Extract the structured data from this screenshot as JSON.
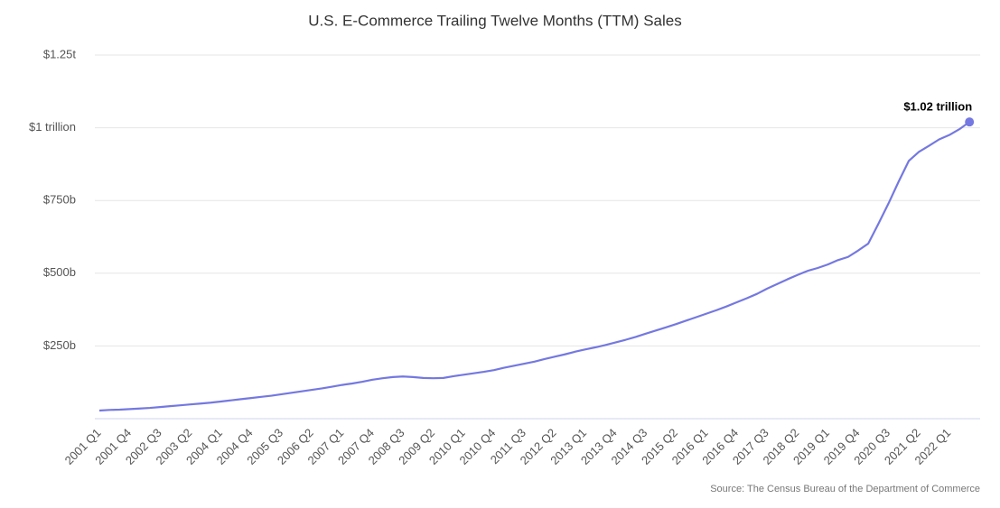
{
  "chart_data": {
    "type": "line",
    "title": "U.S. E-Commerce Trailing Twelve Months (TTM) Sales",
    "source": "Source: The Census Bureau of the Department of Commerce",
    "categories": [
      "2001 Q1",
      null,
      null,
      "2001 Q4",
      null,
      null,
      "2002 Q3",
      null,
      null,
      "2003 Q2",
      null,
      null,
      "2004 Q1",
      null,
      null,
      "2004 Q4",
      null,
      null,
      "2005 Q3",
      null,
      null,
      "2006 Q2",
      null,
      null,
      "2007 Q1",
      null,
      null,
      "2007 Q4",
      null,
      null,
      "2008 Q3",
      null,
      null,
      "2009 Q2",
      null,
      null,
      "2010 Q1",
      null,
      null,
      "2010 Q4",
      null,
      null,
      "2011 Q3",
      null,
      null,
      "2012 Q2",
      null,
      null,
      "2013 Q1",
      null,
      null,
      "2013 Q4",
      null,
      null,
      "2014 Q3",
      null,
      null,
      "2015 Q2",
      null,
      null,
      "2016 Q1",
      null,
      null,
      "2016 Q4",
      null,
      null,
      "2017 Q3",
      null,
      null,
      "2018 Q2",
      null,
      null,
      "2019 Q1",
      null,
      null,
      "2019 Q4",
      null,
      null,
      "2020 Q3",
      null,
      null,
      "2021 Q2",
      null,
      null,
      "2022 Q1",
      null,
      null
    ],
    "series": [
      {
        "name": "TTM Sales",
        "color": "#7478e0",
        "values": [
          28,
          30,
          31,
          33,
          35,
          37,
          40,
          43,
          46,
          49,
          52,
          55,
          59,
          63,
          67,
          71,
          75,
          79,
          84,
          89,
          94,
          99,
          104,
          110,
          116,
          121,
          127,
          134,
          139,
          143,
          145,
          143,
          140,
          139,
          140,
          146,
          151,
          156,
          161,
          167,
          175,
          182,
          189,
          196,
          205,
          213,
          221,
          230,
          238,
          245,
          253,
          262,
          271,
          281,
          292,
          303,
          314,
          325,
          337,
          349,
          361,
          373,
          386,
          400,
          414,
          429,
          447,
          463,
          479,
          494,
          508,
          518,
          530,
          545,
          556,
          578,
          602,
          670,
          740,
          815,
          886,
          917,
          938,
          960,
          975,
          995,
          1020
        ],
        "value_labels": {
          "86": "$1.02 trillion"
        }
      }
    ],
    "ylim": [
      0,
      1250
    ],
    "yticks": [
      {
        "value": 250,
        "label": "$250b"
      },
      {
        "value": 500,
        "label": "$500b"
      },
      {
        "value": 750,
        "label": "$750b"
      },
      {
        "value": 1000,
        "label": "$1 trillion"
      },
      {
        "value": 1250,
        "label": "$1.25t"
      }
    ],
    "grid": true
  }
}
